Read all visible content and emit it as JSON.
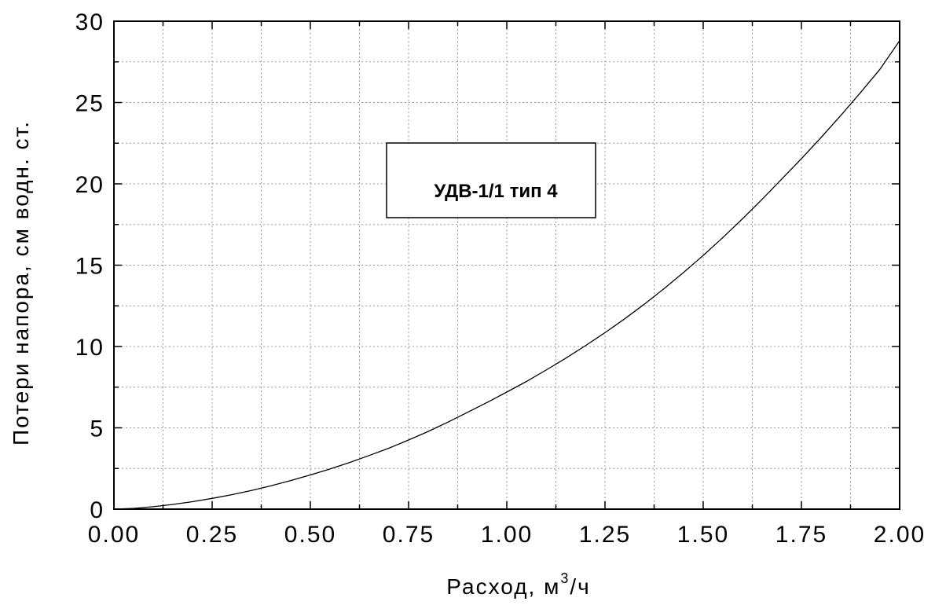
{
  "chart_data": {
    "type": "line",
    "title": "",
    "xlabel": "Расход, м",
    "xlabel_sup": "3",
    "xlabel_suffix": "/ч",
    "ylabel": "Потери напора, см водн. ст.",
    "xlim": [
      0.0,
      2.0
    ],
    "ylim": [
      0,
      30
    ],
    "xticks": [
      "0.00",
      "0.25",
      "0.50",
      "0.75",
      "1.00",
      "1.25",
      "1.50",
      "1.75",
      "2.00"
    ],
    "yticks": [
      "0",
      "5",
      "10",
      "15",
      "20",
      "25",
      "30"
    ],
    "grid": true,
    "legend_placement": "upper-center",
    "series": [
      {
        "name": "УДВ-1/1 тип 4",
        "x": [
          0.0,
          0.05,
          0.1,
          0.15,
          0.2,
          0.25,
          0.3,
          0.35,
          0.4,
          0.45,
          0.5,
          0.55,
          0.6,
          0.65,
          0.7,
          0.75,
          0.8,
          0.85,
          0.9,
          0.95,
          1.0,
          1.05,
          1.1,
          1.15,
          1.2,
          1.25,
          1.3,
          1.35,
          1.4,
          1.45,
          1.5,
          1.55,
          1.6,
          1.65,
          1.7,
          1.75,
          1.8,
          1.85,
          1.9,
          1.95,
          2.0
        ],
        "y": [
          0.0,
          0.05,
          0.15,
          0.29,
          0.46,
          0.66,
          0.89,
          1.15,
          1.44,
          1.76,
          2.1,
          2.47,
          2.87,
          3.3,
          3.75,
          4.25,
          4.78,
          5.35,
          5.95,
          6.56,
          7.2,
          7.85,
          8.55,
          9.28,
          10.05,
          10.85,
          11.7,
          12.6,
          13.55,
          14.55,
          15.6,
          16.7,
          17.85,
          19.05,
          20.3,
          21.55,
          22.85,
          24.2,
          25.6,
          27.05,
          28.8
        ]
      }
    ]
  }
}
